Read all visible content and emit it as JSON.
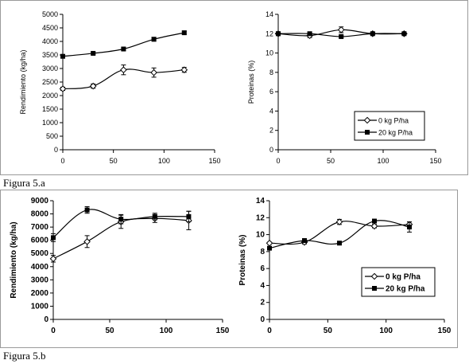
{
  "figure_labels": {
    "a": "Figura 5.a",
    "b": "Figura 5.b"
  },
  "chart_data": [
    {
      "id": "a_left",
      "type": "line",
      "ylabel": "Rendimiento (kg/ha)",
      "xlim": [
        0,
        150
      ],
      "ylim": [
        0,
        5000
      ],
      "xticks": [
        0,
        50,
        100,
        150
      ],
      "yticks": [
        0,
        500,
        1000,
        1500,
        2000,
        2500,
        3000,
        3500,
        4000,
        4500,
        5000
      ],
      "series": [
        {
          "marker": "open-diamond",
          "x": [
            0,
            30,
            60,
            90,
            120
          ],
          "y": [
            2250,
            2350,
            2950,
            2850,
            2950
          ],
          "err": [
            60,
            80,
            180,
            170,
            90
          ]
        },
        {
          "marker": "filled-square",
          "x": [
            0,
            30,
            60,
            90,
            120
          ],
          "y": [
            3450,
            3560,
            3720,
            4080,
            4320
          ],
          "err": [
            40,
            40,
            50,
            70,
            60
          ]
        }
      ]
    },
    {
      "id": "a_right",
      "type": "line",
      "ylabel": "Proteinas (%)",
      "xlim": [
        0,
        150
      ],
      "ylim": [
        0,
        14
      ],
      "xticks": [
        0,
        50,
        100,
        150
      ],
      "yticks": [
        0,
        2,
        4,
        6,
        8,
        10,
        12,
        14
      ],
      "legend": {
        "placement": "right",
        "entries": [
          "0 kg P/ha",
          "20 kg P/ha"
        ]
      },
      "series": [
        {
          "name": "0 kg P/ha",
          "marker": "open-diamond",
          "x": [
            0,
            30,
            60,
            90,
            120
          ],
          "y": [
            12.0,
            11.8,
            12.4,
            12.0,
            12.0
          ],
          "err": [
            0.2,
            0.2,
            0.3,
            0.1,
            0.1
          ]
        },
        {
          "name": "20 kg P/ha",
          "marker": "filled-square",
          "x": [
            0,
            30,
            60,
            90,
            120
          ],
          "y": [
            12.0,
            12.0,
            11.7,
            12.0,
            12.0
          ],
          "err": [
            0.1,
            0.1,
            0.1,
            0.1,
            0.1
          ]
        }
      ]
    },
    {
      "id": "b_left",
      "type": "line",
      "ylabel": "Rendimiento (kg/ha)",
      "xlim": [
        0,
        150
      ],
      "ylim": [
        0,
        9000
      ],
      "xticks": [
        0,
        50,
        100,
        150
      ],
      "yticks": [
        0,
        1000,
        2000,
        3000,
        4000,
        5000,
        6000,
        7000,
        8000,
        9000
      ],
      "series": [
        {
          "marker": "open-diamond",
          "x": [
            0,
            30,
            60,
            90,
            120
          ],
          "y": [
            4600,
            5900,
            7400,
            7650,
            7500
          ],
          "err": [
            250,
            450,
            500,
            300,
            700
          ]
        },
        {
          "marker": "filled-square",
          "x": [
            0,
            30,
            60,
            90,
            120
          ],
          "y": [
            6200,
            8300,
            7600,
            7800,
            7800
          ],
          "err": [
            300,
            250,
            350,
            250,
            400
          ]
        }
      ]
    },
    {
      "id": "b_right",
      "type": "line",
      "ylabel": "Proteinas (%)",
      "xlim": [
        0,
        150
      ],
      "ylim": [
        0,
        14
      ],
      "xticks": [
        0,
        50,
        100,
        150
      ],
      "yticks": [
        0,
        2,
        4,
        6,
        8,
        10,
        12,
        14
      ],
      "legend": {
        "placement": "right",
        "entries": [
          "0 kg P/ha",
          "20 kg P/ha"
        ]
      },
      "series": [
        {
          "name": "0 kg P/ha",
          "marker": "open-diamond",
          "x": [
            0,
            30,
            60,
            90,
            120
          ],
          "y": [
            9.0,
            9.1,
            11.5,
            11.0,
            11.2
          ],
          "err": [
            0.1,
            0.2,
            0.3,
            0.2,
            0.3
          ]
        },
        {
          "name": "20 kg P/ha",
          "marker": "filled-square",
          "x": [
            0,
            30,
            60,
            90,
            120
          ],
          "y": [
            8.4,
            9.3,
            9.0,
            11.6,
            10.9
          ],
          "err": [
            0.1,
            0.1,
            0.1,
            0.2,
            0.6
          ]
        }
      ]
    }
  ]
}
